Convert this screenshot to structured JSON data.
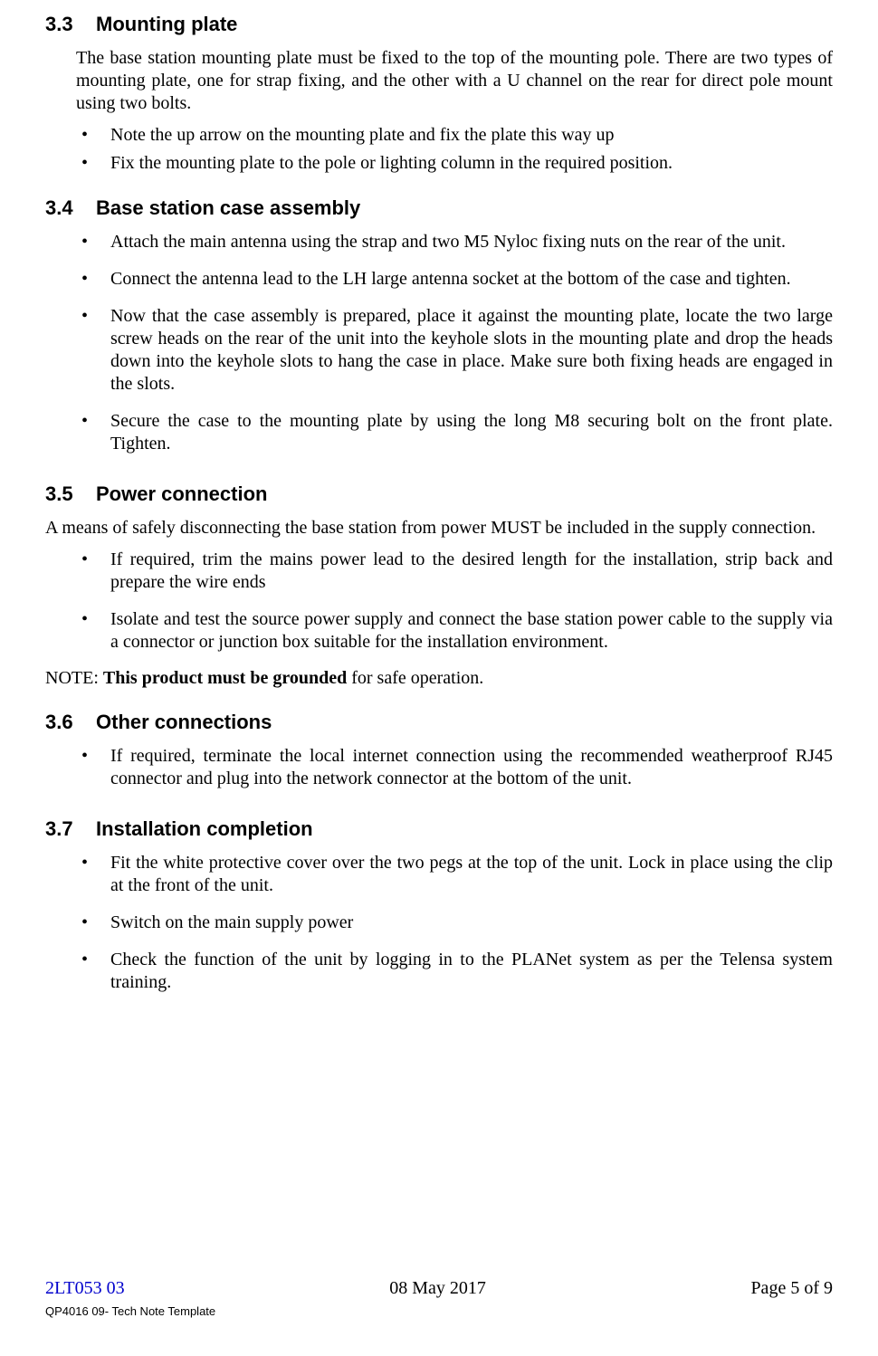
{
  "sections": {
    "s33": {
      "num": "3.3",
      "title": "Mounting plate",
      "intro": "The base station mounting plate must be fixed to the top of the mounting pole. There are two types of mounting plate, one for strap fixing, and the other with a U channel on the rear for direct pole mount using two bolts.",
      "bullets": [
        "Note the up arrow on the mounting plate and fix the plate this way up",
        "Fix the mounting plate to the pole or lighting column in the required position."
      ]
    },
    "s34": {
      "num": "3.4",
      "title": "Base station case assembly",
      "bullets": [
        "Attach the main antenna using the strap and two M5 Nyloc fixing nuts on the rear of the unit.",
        "Connect the antenna lead to the LH large antenna socket at the bottom of the case and tighten.",
        "Now that the case assembly is prepared, place it against the mounting plate, locate the two large screw heads on the rear of the unit into the keyhole slots in the mounting plate and drop the heads down into the keyhole slots to hang the case in place. Make sure both fixing heads are engaged in the slots.",
        "Secure the case to the mounting plate by using the long M8 securing bolt on the front plate. Tighten."
      ]
    },
    "s35": {
      "num": "3.5",
      "title": "Power connection",
      "intro": "A means of safely disconnecting the base station from power MUST be included in the supply connection.",
      "bullets": [
        "If required, trim the mains power lead to the desired length for the installation, strip back and prepare the wire ends",
        "Isolate and test the source power supply and connect the base station power cable to the supply via a connector or junction box suitable for the installation environment."
      ],
      "note_prefix": "NOTE: ",
      "note_bold": "This product must be grounded",
      "note_suffix": " for safe operation."
    },
    "s36": {
      "num": "3.6",
      "title": "Other connections",
      "bullets": [
        "If required, terminate the local internet connection using the recommended weatherproof RJ45 connector and plug into the network connector at the bottom of the unit."
      ]
    },
    "s37": {
      "num": "3.7",
      "title": "Installation completion",
      "bullets": [
        "Fit the white protective cover over the two pegs at the top of the unit. Lock in place using the clip at the front of the unit.",
        "Switch on the main supply power",
        "Check the function of the unit by logging in to the PLANet system as per the Telensa system training."
      ]
    }
  },
  "footer": {
    "left": "2LT053 03",
    "center": "08 May 2017",
    "right": "Page 5 of 9",
    "sub": "QP4016 09- Tech Note Template"
  },
  "colors": {
    "link": "#0000cc",
    "text": "#000000",
    "bg": "#ffffff"
  }
}
